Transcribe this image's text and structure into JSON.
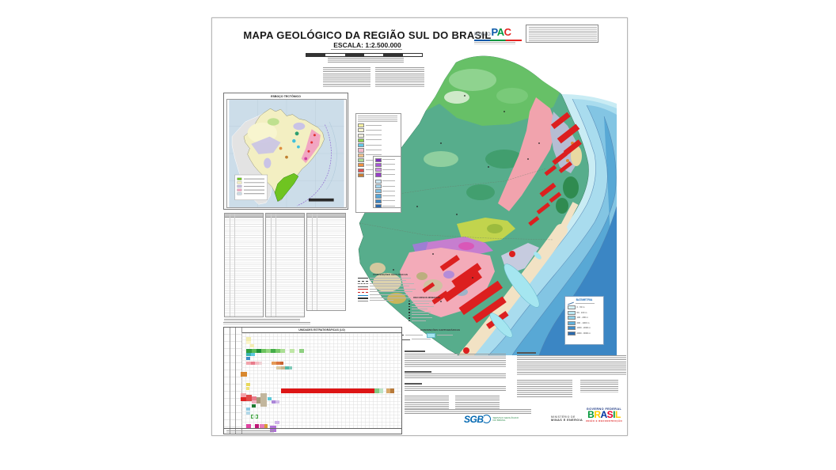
{
  "palette": {
    "ocean_shallow": "#c9ecf4",
    "ocean_mid": "#83c5e3",
    "ocean_deep": "#3b86c4",
    "land_base": "#5cb287",
    "north_green": "#67c067",
    "precambrian_pink": "#f1a3ad",
    "granite_red": "#dc1f1f",
    "coastal_plain_tan": "#f2e2c4",
    "lagoon_cyan": "#a5e6f0",
    "metamorphic_purple": "#c67ecf",
    "gray_band": "#b6bdd3",
    "chartreuse": "#c2d44d"
  },
  "header": {
    "title": "MAPA GEOLÓGICO DA REGIÃO SUL DO BRASIL",
    "scale_label": "ESCALA: 1:2.500.000",
    "novo": "NOVO",
    "pac_letters": [
      {
        "t": "P",
        "c": "#0a58a8"
      },
      {
        "t": "A",
        "c": "#00973f"
      },
      {
        "t": "C",
        "c": "#e42320"
      }
    ]
  },
  "inset": {
    "title": "ESBOÇO TECTÔNICO"
  },
  "inset_legend": {
    "left_swatches": [
      "#f6f0a2",
      "#fcf8d2",
      "#f2efdd",
      "#8ed14e",
      "#62c8e8",
      "#f4b9c9",
      "#f2c28e",
      "#abd992",
      "#ee9040",
      "#e05050",
      "#c87f35"
    ],
    "purple_swatches": [
      "#7f2fbf",
      "#a855d8",
      "#d08ae8",
      "#9840c8"
    ],
    "blue_swatches": [
      "#cfe9f7",
      "#a9d7ef",
      "#7fc0e4",
      "#58a5d6",
      "#3b86c4",
      "#2a68ac"
    ]
  },
  "map_legends": {
    "geologic": {
      "title": "CONVENÇÕES GEOLÓGICAS"
    },
    "minerals": {
      "title": "RECURSOS MINERAIS"
    },
    "cartographic": {
      "title": "CONVENÇÕES CARTOGRÁFICAS"
    },
    "bathymetry": {
      "title": "BATIMETRIA",
      "swatches": [
        "#d6f2f8",
        "#b8e6f2",
        "#8fd0e8",
        "#5fb0dc",
        "#3d8cc8",
        "#2a6aae"
      ],
      "labels": [
        "0 - 50 m",
        "50 - 100 m",
        "100 - 200 m",
        "200 - 1000 m",
        "1000 - 2000 m",
        "2000 - 3000 m"
      ]
    }
  },
  "strat_chart": {
    "title": "UNIDADES ESTRATIGRÁFICAS (1/2)",
    "cells": [
      [
        28,
        12,
        6,
        5,
        "#f2ecae"
      ],
      [
        28,
        17,
        6,
        4,
        "#fbf4cb"
      ],
      [
        33,
        21,
        5,
        4,
        "#f6eeb4"
      ],
      [
        28,
        27,
        7,
        5,
        "#2f9e3f"
      ],
      [
        35,
        27,
        6,
        5,
        "#57bb57"
      ],
      [
        41,
        27,
        6,
        5,
        "#1f8f35"
      ],
      [
        47,
        27,
        6,
        5,
        "#6cc45e"
      ],
      [
        53,
        27,
        6,
        5,
        "#93d47f"
      ],
      [
        59,
        27,
        6,
        5,
        "#45ad49"
      ],
      [
        65,
        27,
        6,
        5,
        "#7bca6b"
      ],
      [
        71,
        27,
        6,
        5,
        "#aade93"
      ],
      [
        83,
        27,
        6,
        5,
        "#bfe6a6"
      ],
      [
        95,
        27,
        6,
        5,
        "#8ed080"
      ],
      [
        28,
        32,
        6,
        4,
        "#3ab6ae"
      ],
      [
        34,
        32,
        5,
        4,
        "#5cc8de"
      ],
      [
        28,
        37,
        5,
        4,
        "#3f8fc9"
      ],
      [
        28,
        43,
        6,
        4,
        "#f2a3ab"
      ],
      [
        34,
        43,
        5,
        4,
        "#e87c8c"
      ],
      [
        39,
        43,
        5,
        4,
        "#f4bac2"
      ],
      [
        44,
        43,
        4,
        4,
        "#efd3d6"
      ],
      [
        60,
        43,
        6,
        4,
        "#e59a56"
      ],
      [
        66,
        43,
        5,
        4,
        "#d9753f"
      ],
      [
        71,
        43,
        4,
        4,
        "#c9622f"
      ],
      [
        66,
        49,
        6,
        4,
        "#d9c9a2"
      ],
      [
        72,
        49,
        5,
        4,
        "#c9b88f"
      ],
      [
        77,
        49,
        5,
        4,
        "#55b8a6"
      ],
      [
        82,
        49,
        4,
        4,
        "#7fcab8"
      ],
      [
        21,
        56,
        8,
        6,
        "#d8882f"
      ],
      [
        28,
        70,
        5,
        4,
        "#e8d85a"
      ],
      [
        28,
        75,
        4,
        4,
        "#f0e276"
      ],
      [
        72,
        77,
        118,
        6,
        "#dd1515"
      ],
      [
        190,
        77,
        6,
        6,
        "#82c882"
      ],
      [
        196,
        77,
        5,
        6,
        "#bce2c4"
      ],
      [
        205,
        77,
        5,
        6,
        "#d9a868"
      ],
      [
        210,
        77,
        5,
        6,
        "#b87a3a"
      ],
      [
        21,
        83,
        7,
        5,
        "#f2a3ab"
      ],
      [
        21,
        88,
        7,
        5,
        "#df2424"
      ],
      [
        28,
        85,
        7,
        8,
        "#e04848"
      ],
      [
        35,
        87,
        6,
        5,
        "#e87c8c"
      ],
      [
        46,
        83,
        8,
        17,
        "#c2b69d"
      ],
      [
        41,
        88,
        5,
        8,
        "#a8987a"
      ],
      [
        55,
        88,
        5,
        4,
        "#5cc8d8"
      ],
      [
        60,
        92,
        5,
        4,
        "#ab86d8"
      ],
      [
        65,
        92,
        5,
        4,
        "#d2bce9"
      ],
      [
        35,
        92,
        6,
        4,
        "#f0b2c2"
      ],
      [
        35,
        97,
        5,
        4,
        "#1e7a33"
      ],
      [
        28,
        101,
        5,
        4,
        "#8cc8e0"
      ],
      [
        28,
        106,
        5,
        4,
        "#b2d8e8"
      ],
      [
        34,
        110,
        9,
        5,
        "#dcf0dc",
        "dashed"
      ],
      [
        28,
        122,
        6,
        5,
        "#e044a2"
      ],
      [
        39,
        122,
        5,
        5,
        "#c01878"
      ],
      [
        45,
        122,
        6,
        5,
        "#e87ab8"
      ],
      [
        51,
        122,
        4,
        5,
        "#d89a36"
      ],
      [
        58,
        124,
        8,
        8,
        "#b070d8"
      ],
      [
        64,
        118,
        6,
        4,
        "#cfb2ea"
      ]
    ]
  },
  "footer": {
    "sgb": "SGB",
    "sgb_sub": "SERVIÇO GEOLÓGICO DO BRASIL",
    "ministry_line1": "MINISTÉRIO DE",
    "ministry_line2": "MINAS E ENERGIA",
    "gov": "GOVERNO FEDERAL",
    "brasil_letters": [
      {
        "t": "B",
        "c": "#009739"
      },
      {
        "t": "R",
        "c": "#ffcd00"
      },
      {
        "t": "A",
        "c": "#0033a0"
      },
      {
        "t": "S",
        "c": "#e4002b"
      },
      {
        "t": "I",
        "c": "#009739"
      },
      {
        "t": "L",
        "c": "#ffcd00"
      }
    ],
    "tagline": "UNIÃO E RECONSTRUÇÃO"
  }
}
